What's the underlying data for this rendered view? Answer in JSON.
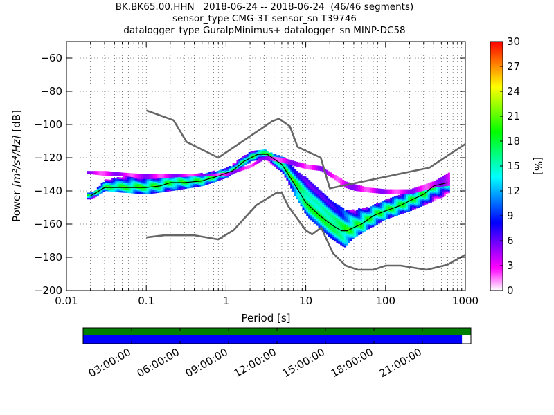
{
  "header": {
    "title_line1": "BK.BK65.00.HHN   2018-06-24 -- 2018-06-24  (46/46 segments)",
    "title_line2": "sensor_type CMG-3T sensor_sn T39746",
    "title_line3": "datalogger_type GuralpMinimus+ datalogger_sn MINP-DC58"
  },
  "chart_data": {
    "type": "heatmap",
    "title": "BK.BK65.00.HHN   2018-06-24 -- 2018-06-24  (46/46 segments)",
    "xlabel": "Period [s]",
    "ylabel_prefix": "Power ",
    "ylabel_units": "[m²/s⁴/Hz]",
    "ylabel_suffix": " [dB]",
    "x_scale": "log",
    "xlim": [
      0.01,
      1000
    ],
    "ylim": [
      -200,
      -50
    ],
    "x_ticks": [
      0.01,
      0.1,
      1,
      10,
      100,
      1000
    ],
    "x_tick_labels": [
      "0.01",
      "0.1",
      "1",
      "10",
      "100",
      "1000"
    ],
    "y_ticks": [
      -200,
      -180,
      -160,
      -140,
      -120,
      -100,
      -80,
      -60
    ],
    "y_tick_labels": [
      "−200",
      "−180",
      "−160",
      "−140",
      "−120",
      "−100",
      "−80",
      "−60"
    ],
    "grid": true,
    "colorbar": {
      "label": "[%]",
      "range": [
        0,
        30
      ],
      "ticks": [
        0,
        3,
        6,
        9,
        12,
        15,
        18,
        21,
        24,
        27,
        30
      ],
      "colors": [
        "#ffffff",
        "#ff00ff",
        "#8000ff",
        "#0000ff",
        "#0080ff",
        "#00ffff",
        "#00ff80",
        "#00ff00",
        "#80ff00",
        "#ffff00",
        "#ff8000",
        "#ff0000"
      ]
    },
    "noise_model_high": {
      "color": "#666666",
      "periods": [
        0.1,
        0.22,
        0.32,
        0.8,
        3.8,
        4.6,
        6.3,
        7.9,
        15.4,
        20,
        354.8,
        10000
      ],
      "values": [
        -91.5,
        -97.4,
        -110.5,
        -120,
        -98,
        -96.5,
        -101,
        -113.5,
        -120,
        -138.5,
        -126,
        -80
      ]
    },
    "noise_model_low": {
      "color": "#666666",
      "periods": [
        0.1,
        0.17,
        0.4,
        0.8,
        1.24,
        2.4,
        4.3,
        5.0,
        6.0,
        10.0,
        12.0,
        15.6,
        21.9,
        31.6,
        45.0,
        70.0,
        101.0,
        154.0,
        328.0,
        600.0,
        10000
      ],
      "values": [
        -168,
        -166.7,
        -166.7,
        -169.2,
        -163.7,
        -148.6,
        -141.1,
        -141.1,
        -149,
        -163.8,
        -166.2,
        -162.1,
        -177.5,
        -185,
        -187.5,
        -187.5,
        -185,
        -185,
        -187.5,
        -184.4,
        -151.5
      ]
    },
    "mode": {
      "color": "#000000",
      "periods": [
        0.02,
        0.03,
        0.05,
        0.1,
        0.15,
        0.2,
        0.3,
        0.5,
        0.8,
        1.2,
        1.7,
        2.5,
        3.3,
        5,
        7,
        10,
        15,
        22,
        28,
        33,
        40,
        50,
        70,
        100,
        150,
        200,
        300,
        400,
        600
      ],
      "values": [
        -143,
        -138,
        -138,
        -138,
        -137,
        -135,
        -135,
        -134,
        -131,
        -128,
        -122,
        -118,
        -118,
        -124,
        -135,
        -147,
        -155,
        -161,
        -164,
        -164,
        -162,
        -160,
        -155,
        -152,
        -149,
        -146,
        -142,
        -137,
        -135
      ]
    },
    "band_spread": {
      "periods": [
        0.02,
        0.03,
        0.05,
        0.1,
        0.2,
        0.5,
        1,
        2,
        3,
        5,
        7,
        10,
        15,
        22,
        30,
        40,
        60,
        100,
        200,
        400,
        600
      ],
      "upper": [
        -142,
        -134,
        -132,
        -133,
        -131,
        -130,
        -127,
        -117,
        -116,
        -120,
        -127,
        -133,
        -140,
        -148,
        -152,
        -152,
        -150,
        -146,
        -141,
        -134,
        -133
      ],
      "lower": [
        -145,
        -140,
        -141,
        -142,
        -140,
        -137,
        -132,
        -122,
        -121,
        -129,
        -142,
        -155,
        -163,
        -170,
        -174,
        -168,
        -163,
        -157,
        -152,
        -146,
        -142
      ]
    },
    "outliers": {
      "periods": [
        0.02,
        0.03,
        0.05,
        0.1,
        0.2,
        0.5,
        1,
        2,
        3,
        5,
        7,
        10,
        15,
        22,
        30,
        40,
        60,
        100,
        200,
        400,
        600
      ],
      "upper": [
        -128,
        -128,
        -129,
        -130,
        -130,
        -130,
        -129,
        -124,
        -119,
        -120,
        -122,
        -124,
        -125,
        -130,
        -134,
        -136,
        -138,
        -139,
        -139,
        -134,
        -129
      ],
      "lower": [
        -130,
        -131,
        -131,
        -133,
        -132,
        -131,
        -131,
        -126,
        -121,
        -123,
        -125,
        -127,
        -128,
        -133,
        -138,
        -140,
        -141,
        -142,
        -142,
        -138,
        -137
      ]
    }
  },
  "timeline": {
    "tick_labels": [
      "03:00:00",
      "06:00:00",
      "09:00:00",
      "12:00:00",
      "15:00:00",
      "18:00:00",
      "21:00:00"
    ],
    "tick_hours": [
      3,
      6,
      9,
      12,
      15,
      18,
      21
    ],
    "data_color": "#008000",
    "used_color": "#0000ff",
    "data_fraction": 1.0,
    "used_fraction": 0.977
  }
}
